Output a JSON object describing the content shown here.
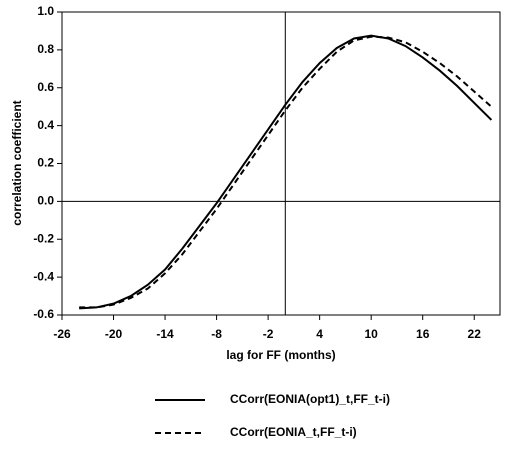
{
  "chart_data": {
    "type": "line",
    "xlabel": "lag for FF (months)",
    "ylabel": "correlation coefficient",
    "x": [
      -24,
      -22,
      -20,
      -18,
      -16,
      -14,
      -12,
      -10,
      -8,
      -6,
      -4,
      -2,
      0,
      2,
      4,
      6,
      8,
      10,
      12,
      14,
      16,
      18,
      20,
      22,
      24
    ],
    "series": [
      {
        "name": "CCorr(EONIA(opt1)_t,FF_t-i)",
        "color": "#000000",
        "linestyle": "solid",
        "values": [
          -0.565,
          -0.56,
          -0.54,
          -0.5,
          -0.44,
          -0.36,
          -0.25,
          -0.13,
          -0.01,
          0.12,
          0.25,
          0.38,
          0.51,
          0.63,
          0.73,
          0.81,
          0.86,
          0.875,
          0.86,
          0.82,
          0.76,
          0.69,
          0.61,
          0.52,
          0.43
        ]
      },
      {
        "name": "CCorr(EONIA_t,FF_t-i)",
        "color": "#000000",
        "linestyle": "dashed",
        "values": [
          -0.56,
          -0.56,
          -0.545,
          -0.51,
          -0.46,
          -0.38,
          -0.28,
          -0.16,
          -0.04,
          0.09,
          0.22,
          0.35,
          0.48,
          0.6,
          0.7,
          0.79,
          0.85,
          0.87,
          0.865,
          0.84,
          0.79,
          0.73,
          0.66,
          0.58,
          0.5
        ]
      }
    ],
    "xlim": [
      -26,
      25
    ],
    "xticks": [
      -26,
      -20,
      -14,
      -8,
      -2,
      4,
      10,
      16,
      22
    ],
    "ylim": [
      -0.6,
      1.0
    ],
    "yticks": [
      -0.6,
      -0.4,
      -0.2,
      {
        "value": 0,
        "label": "0.0"
      },
      0.2,
      0.4,
      0.6,
      0.8,
      {
        "value": 1,
        "label": "1.0"
      }
    ],
    "zero_lines": true,
    "legend": "bottom"
  }
}
